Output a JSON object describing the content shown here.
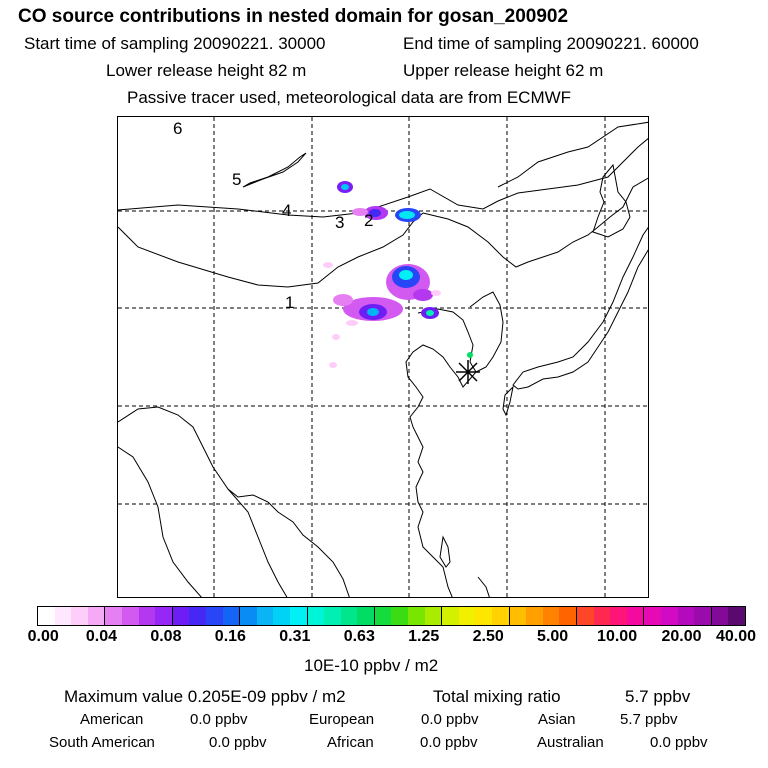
{
  "header": {
    "title": "CO  source contributions in nested domain for gosan_200902",
    "start_time": "Start time of sampling 20090221. 30000",
    "end_time": "End time of sampling 20090221. 60000",
    "lower_height": "Lower release height   82 m",
    "upper_height": "Upper release height   62 m",
    "tracer_note": "Passive tracer used, meteorological data are from ECMWF"
  },
  "map": {
    "trajectory_labels": [
      "1",
      "2",
      "3",
      "4",
      "5",
      "6"
    ],
    "receptor_name": "gosan"
  },
  "colorbar": {
    "ticks": [
      "0.00",
      "0.04",
      "0.08",
      "0.16",
      "0.31",
      "0.63",
      "1.25",
      "2.50",
      "5.00",
      "10.00",
      "20.00",
      "40.00"
    ],
    "colors": [
      "#ffffff",
      "#ffe8ff",
      "#ffcdfa",
      "#f5aaf5",
      "#e680f2",
      "#d25af0",
      "#b438f0",
      "#9628f5",
      "#6e1ef5",
      "#4628f5",
      "#2846f5",
      "#1464f5",
      "#0a8cf5",
      "#0ab4f5",
      "#00d2f5",
      "#00f0f5",
      "#00f5d7",
      "#00f0b4",
      "#00e68c",
      "#00dc64",
      "#14dc3c",
      "#3cdc14",
      "#78e600",
      "#aaeb00",
      "#d2f000",
      "#f0f000",
      "#ffe600",
      "#ffd200",
      "#ffbe00",
      "#ffa000",
      "#ff8200",
      "#ff6400",
      "#ff4628",
      "#ff2850",
      "#ff1478",
      "#f50aa0",
      "#e60ab4",
      "#d20ac3",
      "#b40abe",
      "#9b0aaa",
      "#820a96",
      "#5a0a6e"
    ],
    "units": "10E-10 ppbv / m2"
  },
  "summary": {
    "max_value": "Maximum value  0.205E-09 ppbv / m2",
    "total_mixing": "Total mixing ratio",
    "total_value": "5.7 ppbv",
    "regions": [
      {
        "name": "American",
        "value": "0.0 ppbv"
      },
      {
        "name": "European",
        "value": "0.0 ppbv"
      },
      {
        "name": "Asian",
        "value": "5.7 ppbv"
      },
      {
        "name": "South American",
        "value": "0.0 ppbv"
      },
      {
        "name": "African",
        "value": "0.0 ppbv"
      },
      {
        "name": "Australian",
        "value": "0.0 ppbv"
      }
    ]
  }
}
